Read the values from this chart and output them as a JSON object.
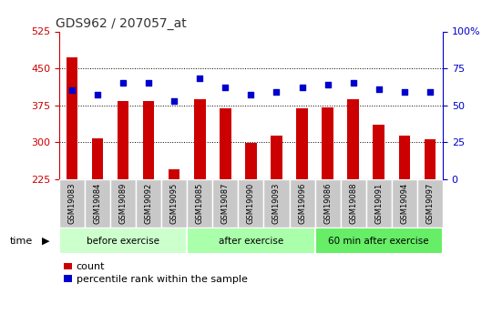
{
  "title": "GDS962 / 207057_at",
  "categories": [
    "GSM19083",
    "GSM19084",
    "GSM19089",
    "GSM19092",
    "GSM19095",
    "GSM19085",
    "GSM19087",
    "GSM19090",
    "GSM19093",
    "GSM19096",
    "GSM19086",
    "GSM19088",
    "GSM19091",
    "GSM19094",
    "GSM19097"
  ],
  "bar_values": [
    472,
    307,
    383,
    383,
    245,
    388,
    368,
    298,
    313,
    368,
    370,
    388,
    335,
    313,
    305
  ],
  "percentile_values": [
    60,
    57,
    65,
    65,
    53,
    68,
    62,
    57,
    59,
    62,
    64,
    65,
    61,
    59,
    59
  ],
  "groups": [
    {
      "label": "before exercise",
      "start": 0,
      "end": 5,
      "color": "#ccffcc"
    },
    {
      "label": "after exercise",
      "start": 5,
      "end": 10,
      "color": "#aaffaa"
    },
    {
      "label": "60 min after exercise",
      "start": 10,
      "end": 15,
      "color": "#66ee66"
    }
  ],
  "ylim_left": [
    225,
    525
  ],
  "ylim_right": [
    0,
    100
  ],
  "yticks_left": [
    225,
    300,
    375,
    450,
    525
  ],
  "yticks_right": [
    0,
    25,
    50,
    75,
    100
  ],
  "bar_color": "#cc0000",
  "dot_color": "#0000cc",
  "plot_bg": "#ffffff",
  "xtick_bg": "#cccccc",
  "left_axis_color": "#cc0000",
  "right_axis_color": "#0000cc",
  "grid_yticks": [
    300,
    375,
    450
  ],
  "legend_bar_label": "count",
  "legend_dot_label": "percentile rank within the sample",
  "bar_width": 0.45
}
